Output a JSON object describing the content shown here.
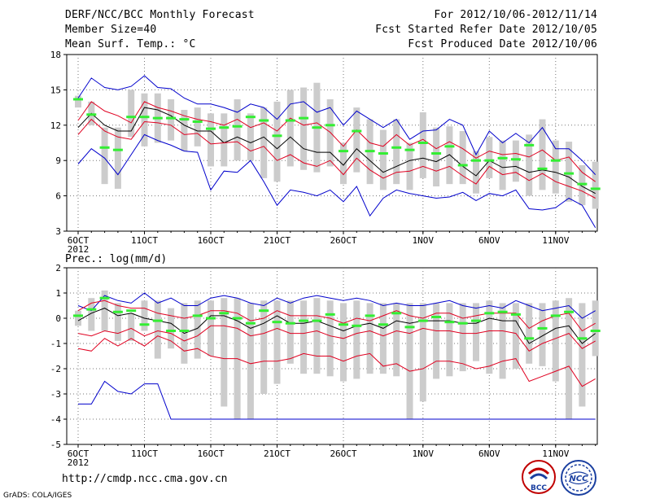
{
  "header": {
    "title": "DERF/NCC/BCC Monthly Forecast",
    "member_size": "Member Size=40",
    "variable": "Mean Surf. Temp.: °C",
    "period": "For 2012/10/06-2012/11/14",
    "start_date": "Fcst Started Refer Date 2012/10/05",
    "produced_date": "Fcst Produced Date 2012/10/06"
  },
  "footer": {
    "url": "http://cmdp.ncc.cma.gov.cn",
    "credit": "GrADS: COLA/IGES",
    "logo_bcc": "BCC",
    "logo_ncc": "NCC"
  },
  "colors": {
    "envelope": "#0000cc",
    "spread": "#e00020",
    "mean": "#000000",
    "box": "#cccccc",
    "marker": "#33ee33"
  },
  "chart_data": [
    {
      "type": "line",
      "title": "Mean Surf. Temp.: °C",
      "xlabel": "",
      "ylabel": "°C",
      "ylim": [
        3,
        18
      ],
      "yticks": [
        3,
        6,
        9,
        12,
        15,
        18
      ],
      "xticks": [
        {
          "day": 0,
          "label": "6OCT"
        },
        {
          "day": 5,
          "label": "11OCT"
        },
        {
          "day": 10,
          "label": "16OCT"
        },
        {
          "day": 15,
          "label": "21OCT"
        },
        {
          "day": 20,
          "label": "26OCT"
        },
        {
          "day": 26,
          "label": "1NOV"
        },
        {
          "day": 31,
          "label": "6NOV"
        },
        {
          "day": 36,
          "label": "11NOV"
        }
      ],
      "year_label": "2012",
      "x_days": [
        0,
        1,
        2,
        3,
        4,
        5,
        6,
        7,
        8,
        9,
        10,
        11,
        12,
        13,
        14,
        15,
        16,
        17,
        18,
        19,
        20,
        21,
        22,
        23,
        24,
        25,
        26,
        27,
        28,
        29,
        30,
        31,
        32,
        33,
        34,
        35,
        36,
        37,
        38,
        39
      ],
      "series": [
        {
          "name": "max",
          "role": "envelope",
          "values": [
            14.3,
            16.0,
            15.2,
            15.0,
            15.3,
            16.2,
            15.2,
            15.1,
            14.3,
            13.8,
            13.8,
            13.5,
            13.1,
            13.8,
            13.5,
            12.5,
            13.8,
            14.0,
            13.1,
            13.5,
            12.0,
            13.2,
            12.5,
            11.8,
            12.5,
            10.8,
            11.5,
            11.6,
            12.5,
            12.0,
            9.5,
            11.5,
            10.5,
            11.3,
            10.5,
            11.8,
            10.0,
            10.0,
            9.0,
            7.8
          ]
        },
        {
          "name": "upper",
          "role": "spread",
          "values": [
            12.4,
            14.0,
            13.2,
            12.8,
            12.2,
            14.0,
            13.5,
            13.2,
            12.8,
            12.5,
            12.3,
            12.0,
            12.5,
            11.8,
            12.2,
            11.5,
            12.6,
            12.0,
            12.2,
            11.4,
            10.2,
            11.6,
            10.5,
            10.2,
            11.2,
            10.3,
            10.8,
            10.0,
            10.6,
            10.0,
            9.2,
            9.8,
            9.5,
            9.6,
            9.3,
            9.9,
            9.0,
            9.3,
            8.0,
            7.2
          ]
        },
        {
          "name": "mean",
          "role": "mean",
          "values": [
            11.8,
            13.0,
            12.0,
            11.5,
            11.5,
            13.5,
            13.3,
            12.8,
            12.0,
            11.5,
            11.5,
            10.5,
            11.0,
            10.5,
            11.0,
            10.0,
            11.0,
            10.0,
            9.7,
            9.7,
            8.6,
            10.0,
            9.0,
            8.0,
            8.5,
            9.0,
            9.2,
            8.9,
            9.5,
            8.5,
            7.7,
            9.0,
            8.4,
            8.5,
            8.0,
            8.2,
            8.0,
            7.6,
            6.8,
            6.2
          ]
        },
        {
          "name": "lower",
          "role": "spread",
          "values": [
            11.2,
            12.5,
            11.5,
            11.0,
            10.8,
            12.3,
            12.2,
            12.0,
            11.2,
            11.3,
            10.4,
            10.5,
            10.6,
            9.8,
            10.2,
            9.0,
            9.5,
            8.8,
            8.5,
            9.0,
            7.8,
            9.2,
            8.2,
            7.5,
            8.0,
            8.1,
            8.5,
            8.1,
            8.5,
            7.7,
            7.0,
            8.5,
            7.8,
            8.0,
            7.3,
            7.9,
            7.2,
            6.8,
            6.4,
            5.8
          ]
        },
        {
          "name": "min",
          "role": "envelope",
          "values": [
            8.7,
            10.0,
            9.2,
            7.8,
            9.5,
            11.2,
            10.7,
            10.3,
            9.8,
            9.7,
            6.5,
            8.1,
            8.0,
            9.0,
            7.2,
            5.2,
            6.5,
            6.3,
            6.0,
            6.5,
            5.5,
            6.8,
            4.3,
            5.8,
            6.5,
            6.2,
            6.0,
            5.8,
            5.9,
            6.3,
            5.6,
            6.2,
            6.0,
            6.5,
            4.9,
            4.8,
            5.0,
            5.8,
            5.2,
            3.3
          ]
        }
      ],
      "box_low": [
        13.5,
        12.0,
        7.0,
        6.6,
        11.0,
        10.2,
        10.5,
        10.7,
        9.8,
        10.2,
        8.5,
        8.5,
        9.0,
        9.0,
        7.5,
        7.2,
        8.5,
        8.2,
        8.0,
        8.5,
        7.0,
        8.0,
        7.0,
        6.5,
        7.0,
        6.5,
        7.5,
        6.8,
        7.0,
        7.0,
        6.2,
        7.5,
        6.5,
        7.2,
        6.0,
        6.5,
        6.2,
        5.5,
        5.2,
        4.9
      ],
      "box_high": [
        14.5,
        14.0,
        11.8,
        11.8,
        15.0,
        14.7,
        14.7,
        14.2,
        13.3,
        13.5,
        13.0,
        13.0,
        14.2,
        13.0,
        13.5,
        14.0,
        15.0,
        15.2,
        15.6,
        14.2,
        10.5,
        13.5,
        12.5,
        11.6,
        12.5,
        10.5,
        13.1,
        11.8,
        11.9,
        11.5,
        9.8,
        11.0,
        10.7,
        10.7,
        11.2,
        12.5,
        10.7,
        10.6,
        8.6,
        8.9
      ],
      "markers": [
        14.2,
        12.9,
        10.1,
        9.9,
        12.7,
        12.7,
        12.6,
        12.6,
        12.5,
        12.3,
        11.7,
        11.8,
        11.9,
        12.7,
        12.4,
        11.1,
        12.4,
        12.6,
        11.8,
        12.0,
        9.8,
        11.5,
        9.8,
        9.6,
        10.1,
        9.9,
        10.5,
        9.6,
        10.2,
        8.6,
        9.0,
        9.0,
        9.2,
        9.1,
        10.3,
        8.3,
        9.0,
        7.9,
        7.0,
        6.6
      ]
    },
    {
      "type": "line",
      "title": "Prec.: log(mm/d)",
      "xlabel": "",
      "ylabel": "log(mm/d)",
      "ylim": [
        -5,
        2
      ],
      "yticks": [
        -5,
        -4,
        -3,
        -2,
        -1,
        0,
        1,
        2
      ],
      "xticks": [
        {
          "day": 0,
          "label": "6OCT"
        },
        {
          "day": 5,
          "label": "11OCT"
        },
        {
          "day": 10,
          "label": "16OCT"
        },
        {
          "day": 15,
          "label": "21OCT"
        },
        {
          "day": 20,
          "label": "26OCT"
        },
        {
          "day": 26,
          "label": "1NOV"
        },
        {
          "day": 31,
          "label": "6NOV"
        },
        {
          "day": 36,
          "label": "11NOV"
        }
      ],
      "year_label": "2012",
      "x_days": [
        0,
        1,
        2,
        3,
        4,
        5,
        6,
        7,
        8,
        9,
        10,
        11,
        12,
        13,
        14,
        15,
        16,
        17,
        18,
        19,
        20,
        21,
        22,
        23,
        24,
        25,
        26,
        27,
        28,
        29,
        30,
        31,
        32,
        33,
        34,
        35,
        36,
        37,
        38,
        39
      ],
      "series": [
        {
          "name": "max",
          "role": "envelope",
          "values": [
            0.5,
            0.3,
            0.9,
            0.7,
            0.6,
            1.0,
            0.6,
            0.8,
            0.5,
            0.5,
            0.8,
            0.9,
            0.8,
            0.6,
            0.5,
            0.8,
            0.6,
            0.8,
            0.9,
            0.8,
            0.7,
            0.8,
            0.7,
            0.5,
            0.6,
            0.5,
            0.5,
            0.6,
            0.7,
            0.5,
            0.4,
            0.5,
            0.4,
            0.7,
            0.5,
            0.3,
            0.4,
            0.5,
            0.0,
            0.3
          ]
        },
        {
          "name": "upper",
          "role": "spread",
          "values": [
            0.3,
            0.6,
            0.7,
            0.5,
            0.4,
            0.4,
            0.2,
            0.1,
            0.0,
            0.1,
            0.3,
            0.3,
            0.2,
            -0.1,
            0.0,
            0.3,
            0.1,
            0.1,
            0.1,
            0.0,
            -0.2,
            0.0,
            -0.1,
            0.1,
            0.3,
            0.1,
            0.0,
            0.2,
            0.2,
            0.0,
            0.1,
            0.2,
            0.2,
            0.2,
            -0.4,
            -0.1,
            0.1,
            0.2,
            -0.5,
            -0.2
          ]
        },
        {
          "name": "mean",
          "role": "mean",
          "values": [
            -0.1,
            0.2,
            0.4,
            0.1,
            0.2,
            0.0,
            -0.1,
            -0.2,
            -0.6,
            -0.4,
            0.1,
            0.1,
            -0.1,
            -0.4,
            -0.2,
            0.1,
            -0.2,
            -0.2,
            -0.1,
            -0.3,
            -0.5,
            -0.3,
            -0.2,
            -0.4,
            -0.1,
            -0.2,
            -0.1,
            -0.1,
            -0.1,
            -0.2,
            -0.2,
            0.0,
            -0.1,
            -0.1,
            -1.0,
            -0.7,
            -0.4,
            -0.3,
            -1.0,
            -0.6
          ]
        },
        {
          "name": "lower",
          "role": "spread",
          "values": [
            -0.6,
            -0.7,
            -0.5,
            -0.6,
            -0.4,
            -0.7,
            -0.5,
            -0.6,
            -0.9,
            -0.7,
            -0.3,
            -0.3,
            -0.4,
            -0.7,
            -0.6,
            -0.4,
            -0.6,
            -0.6,
            -0.5,
            -0.7,
            -0.8,
            -0.6,
            -0.5,
            -0.7,
            -0.5,
            -0.6,
            -0.4,
            -0.5,
            -0.5,
            -0.6,
            -0.6,
            -0.5,
            -0.5,
            -0.6,
            -1.3,
            -1.0,
            -0.8,
            -0.6,
            -1.2,
            -0.9
          ]
        },
        {
          "name": "min_spread",
          "role": "spread",
          "values": [
            -1.2,
            -1.3,
            -0.8,
            -1.1,
            -0.8,
            -1.1,
            -0.7,
            -0.9,
            -1.3,
            -1.2,
            -1.5,
            -1.6,
            -1.6,
            -1.8,
            -1.7,
            -1.7,
            -1.6,
            -1.4,
            -1.5,
            -1.5,
            -1.7,
            -1.5,
            -1.4,
            -1.9,
            -1.8,
            -2.1,
            -2.0,
            -1.7,
            -1.7,
            -1.8,
            -2.0,
            -1.9,
            -1.7,
            -1.6,
            -2.5,
            -2.3,
            -2.1,
            -1.9,
            -2.7,
            -2.4
          ]
        },
        {
          "name": "min",
          "role": "envelope",
          "values": [
            -3.4,
            -3.4,
            -2.5,
            -2.9,
            -3.0,
            -2.6,
            -2.6,
            -4.0,
            -4.0,
            -4.0,
            -4.0,
            -4.0,
            -4.0,
            -4.0,
            -4.0,
            -4.0,
            -4.0,
            -4.0,
            -4.0,
            -4.0,
            -4.0,
            -4.0,
            -4.0,
            -4.0,
            -4.0,
            -4.0,
            -4.0,
            -4.0,
            -4.0,
            -4.0,
            -4.0,
            -4.0,
            -4.0,
            -4.0,
            -4.0,
            -4.0,
            -4.0,
            -4.0,
            -4.0,
            -4.0
          ]
        }
      ],
      "box_low": [
        -0.3,
        -0.5,
        -0.5,
        -0.9,
        -0.9,
        -0.5,
        -1.6,
        -1.2,
        -1.8,
        -1.6,
        -1.5,
        -3.5,
        -4.0,
        -4.0,
        -3.0,
        -2.6,
        -1.8,
        -2.2,
        -2.2,
        -2.3,
        -2.5,
        -2.4,
        -2.2,
        -2.2,
        -2.3,
        -4.0,
        -3.3,
        -2.4,
        -2.3,
        -2.1,
        -1.7,
        -2.2,
        -2.4,
        -2.0,
        -1.8,
        -1.9,
        -2.5,
        -4.0,
        -3.5,
        -1.5
      ],
      "box_high": [
        0.3,
        0.8,
        1.1,
        0.6,
        0.2,
        0.7,
        0.7,
        0.4,
        0.6,
        0.7,
        0.7,
        0.8,
        0.8,
        0.6,
        0.7,
        0.7,
        0.7,
        0.7,
        0.8,
        0.7,
        0.6,
        0.7,
        0.6,
        0.6,
        0.6,
        0.6,
        0.6,
        0.6,
        0.6,
        0.6,
        0.6,
        0.7,
        0.6,
        0.6,
        0.6,
        0.6,
        0.7,
        0.8,
        0.6,
        0.7
      ],
      "markers": [
        0.1,
        0.35,
        0.8,
        0.25,
        0.3,
        -0.25,
        -0.1,
        -0.5,
        -0.5,
        0.1,
        0.0,
        0.2,
        0.0,
        -0.2,
        0.3,
        -0.15,
        -0.2,
        -0.1,
        -0.1,
        0.15,
        -0.25,
        -0.3,
        0.1,
        -0.25,
        0.2,
        -0.35,
        -0.1,
        0.05,
        -0.15,
        -0.2,
        -0.1,
        0.2,
        0.25,
        0.15,
        -0.8,
        -0.4,
        0.1,
        0.25,
        -0.8,
        -0.5
      ]
    }
  ]
}
